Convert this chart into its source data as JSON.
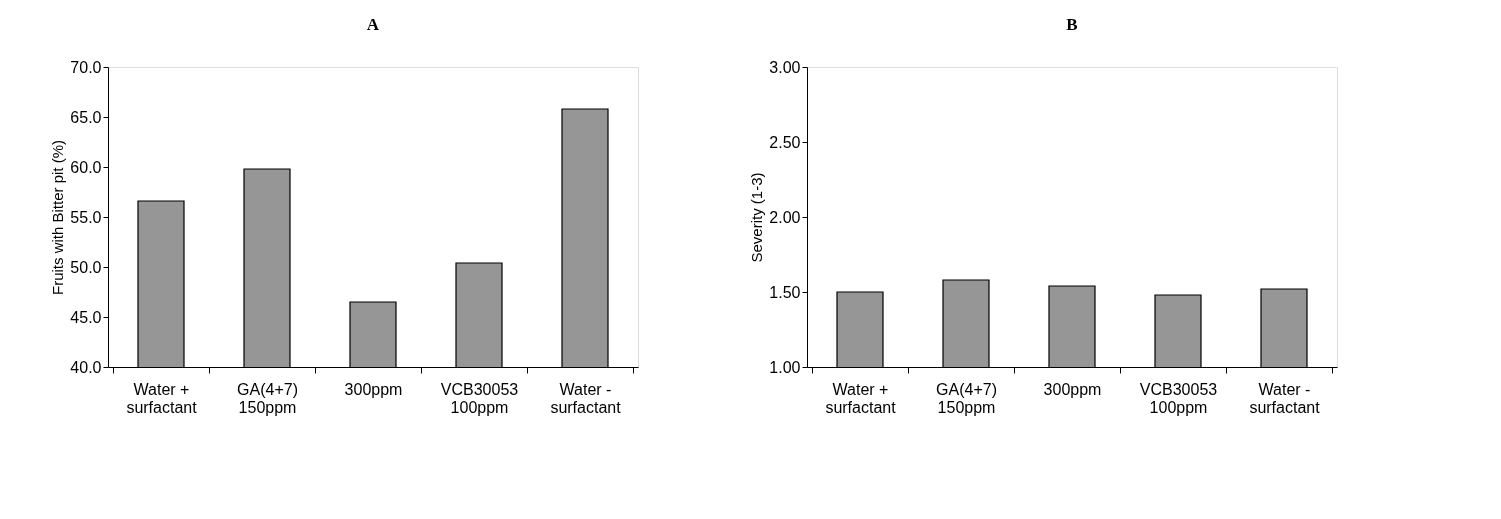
{
  "chart_data": [
    {
      "type": "bar",
      "title": "A",
      "ylabel": "Fruits with Bitter pit (%)",
      "categories": [
        "Water +\nsurfactant",
        "GA(4+7)\n150ppm",
        "300ppm",
        "VCB30053\n100ppm",
        "Water -\nsurfactant"
      ],
      "series": [
        {
          "color": "#969696",
          "values": [
            56.6,
            59.8,
            46.5,
            50.4,
            65.8
          ]
        }
      ],
      "ylim": [
        40,
        70
      ],
      "yticks": [
        {
          "value": 40,
          "label": "40.0"
        },
        {
          "value": 45,
          "label": "45.0"
        },
        {
          "value": 50,
          "label": "50.0"
        },
        {
          "value": 55,
          "label": "55.0"
        },
        {
          "value": 60,
          "label": "60.0"
        },
        {
          "value": 65,
          "label": "65.0"
        },
        {
          "value": 70,
          "label": "70.0"
        }
      ],
      "grid": false
    },
    {
      "type": "bar",
      "title": "B",
      "ylabel": "Severity  (1-3)",
      "categories": [
        "Water +\nsurfactant",
        "GA(4+7)\n150ppm",
        "300ppm",
        "VCB30053\n100ppm",
        "Water -\nsurfactant"
      ],
      "series": [
        {
          "color": "#969696",
          "values": [
            1.5,
            1.58,
            1.54,
            1.48,
            1.52
          ]
        }
      ],
      "ylim": [
        1,
        3
      ],
      "yticks": [
        {
          "value": 1,
          "label": "1.00"
        },
        {
          "value": 1.5,
          "label": "1.50"
        },
        {
          "value": 2,
          "label": "2.00"
        },
        {
          "value": 2.5,
          "label": "2.50"
        },
        {
          "value": 3,
          "label": "3.00"
        }
      ],
      "grid": false
    }
  ]
}
